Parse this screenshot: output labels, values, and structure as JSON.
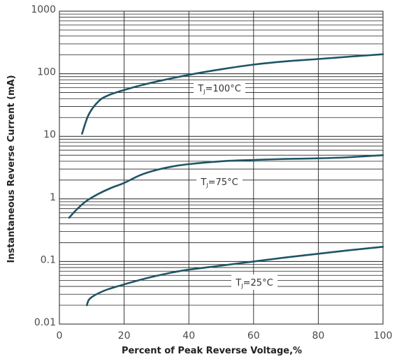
{
  "chart_data": {
    "type": "line",
    "xlabel": "Percent of Peak Reverse Voltage,%",
    "ylabel": "Instantaneous Reverse Current (mA)",
    "xlim": [
      0,
      100
    ],
    "ylim": [
      0.01,
      1000
    ],
    "yscale": "log",
    "grid": true,
    "x_ticks": [
      "0",
      "20",
      "40",
      "60",
      "80",
      "100"
    ],
    "y_ticks": [
      "0.01",
      "0.1",
      "1",
      "10",
      "100",
      "1000"
    ],
    "line_color": "#1d5566",
    "series": [
      {
        "name_prefix": "T",
        "name_sub": "J",
        "name_suffix": "=100°C",
        "x": [
          7,
          9,
          12,
          15,
          20,
          25,
          30,
          40,
          50,
          60,
          70,
          80,
          90,
          100
        ],
        "y": [
          11,
          22,
          36,
          45,
          55,
          65,
          75,
          96,
          118,
          140,
          158,
          172,
          188,
          205
        ]
      },
      {
        "name_prefix": "T",
        "name_sub": "J",
        "name_suffix": "=75°C",
        "x": [
          3,
          5,
          8,
          12,
          16,
          20,
          25,
          30,
          35,
          40,
          50,
          60,
          70,
          80,
          90,
          100
        ],
        "y": [
          0.5,
          0.65,
          0.9,
          1.2,
          1.5,
          1.8,
          2.4,
          2.9,
          3.3,
          3.6,
          4.0,
          4.2,
          4.35,
          4.45,
          4.65,
          5.0
        ]
      },
      {
        "name_prefix": "T",
        "name_sub": "J",
        "name_suffix": "=25°C",
        "x": [
          8.5,
          9,
          10,
          12,
          15,
          20,
          25,
          30,
          35,
          40,
          50,
          60,
          70,
          80,
          90,
          100
        ],
        "y": [
          0.02,
          0.024,
          0.027,
          0.031,
          0.036,
          0.043,
          0.051,
          0.059,
          0.067,
          0.074,
          0.086,
          0.1,
          0.116,
          0.133,
          0.152,
          0.172
        ]
      }
    ]
  }
}
